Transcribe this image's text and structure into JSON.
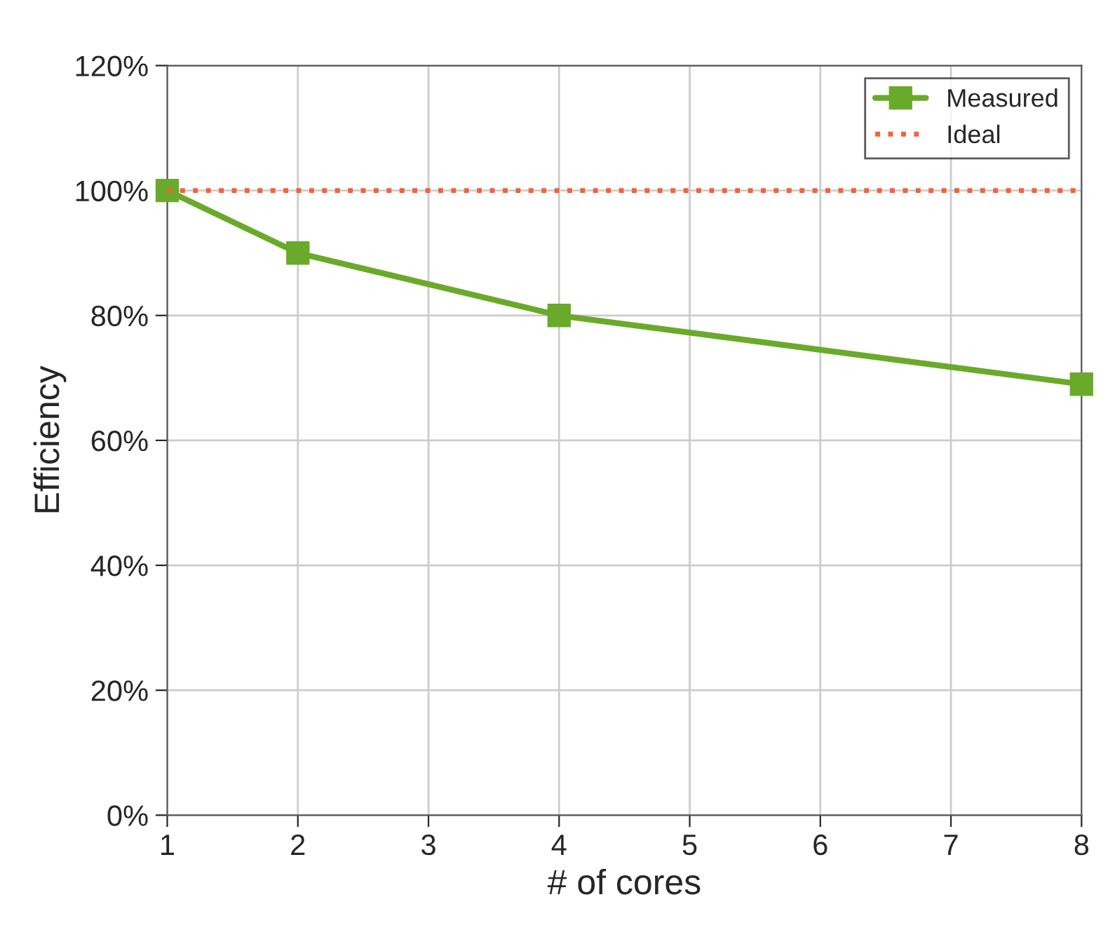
{
  "chart_data": {
    "type": "line",
    "xlabel": "# of cores",
    "ylabel": "Efficiency",
    "series": [
      {
        "name": "Measured",
        "color": "#6aaa2a",
        "x": [
          1,
          2,
          4,
          8
        ],
        "values": [
          100,
          90,
          80,
          69
        ],
        "marker": "square",
        "line_style": "solid"
      },
      {
        "name": "Ideal",
        "color": "#f0643c",
        "x": [
          1,
          8
        ],
        "values": [
          100,
          100
        ],
        "marker": "none",
        "line_style": "dotted"
      }
    ],
    "xlim": [
      1,
      8
    ],
    "xticks": [
      1,
      2,
      3,
      4,
      5,
      6,
      7,
      8
    ],
    "ylim": [
      0,
      120
    ],
    "yticks": [
      {
        "value": 0,
        "label": "0%"
      },
      {
        "value": 20,
        "label": "20%"
      },
      {
        "value": 40,
        "label": "40%"
      },
      {
        "value": 60,
        "label": "60%"
      },
      {
        "value": 80,
        "label": "80%"
      },
      {
        "value": 100,
        "label": "100%"
      },
      {
        "value": 120,
        "label": "120%"
      }
    ],
    "grid": true,
    "legend": "top right"
  }
}
